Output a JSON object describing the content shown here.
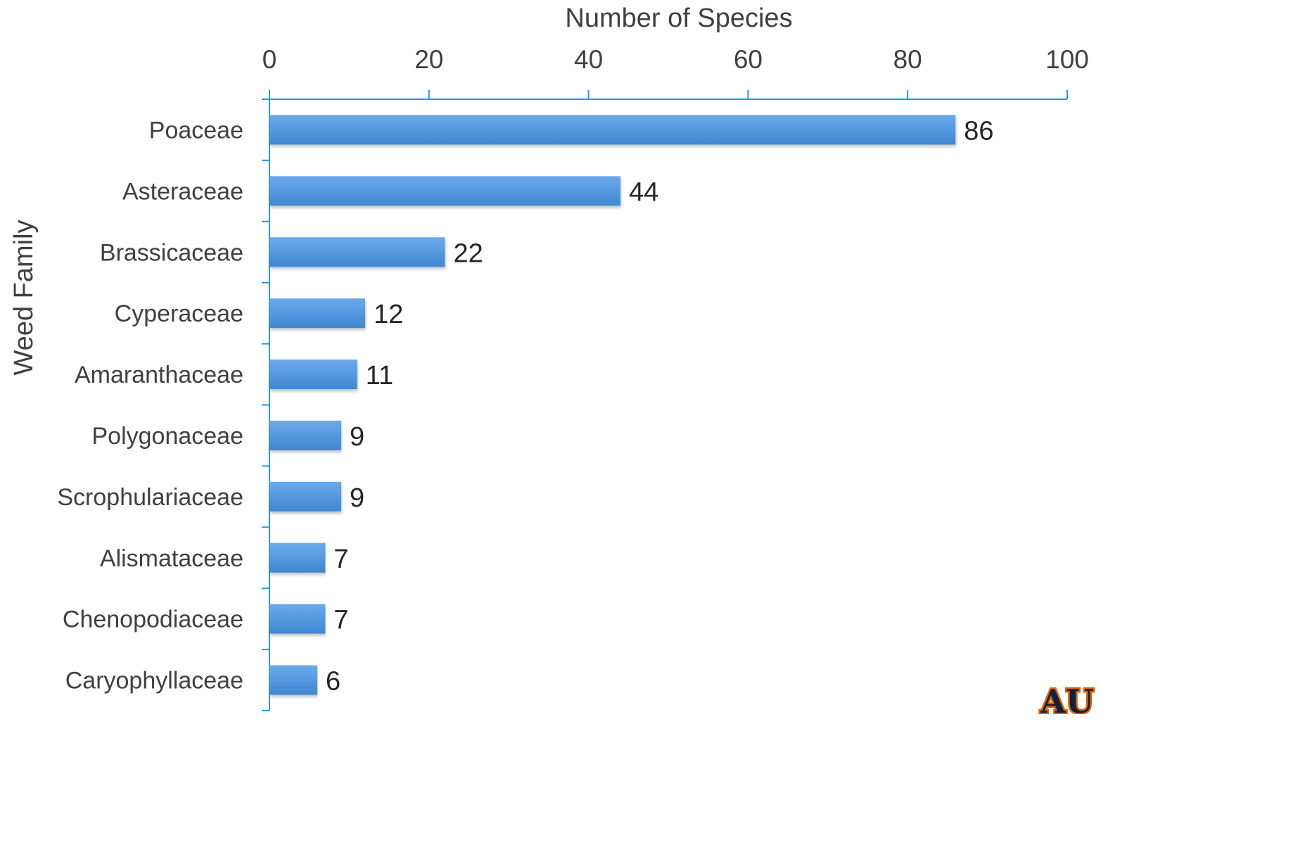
{
  "chart_data": {
    "type": "bar",
    "orientation": "horizontal",
    "categories": [
      "Poaceae",
      "Asteraceae",
      "Brassicaceae",
      "Cyperaceae",
      "Amaranthaceae",
      "Polygonaceae",
      "Scrophulariaceae",
      "Alismataceae",
      "Chenopodiaceae",
      "Caryophyllaceae"
    ],
    "values": [
      86,
      44,
      22,
      12,
      11,
      9,
      9,
      7,
      7,
      6
    ],
    "title": "",
    "xlabel": "Number of Species",
    "ylabel": "Weed Family",
    "xlim": [
      0,
      100
    ],
    "x_ticks": [
      0,
      20,
      40,
      60,
      80,
      100
    ],
    "x_axis_position": "top",
    "grid": false,
    "legend": "none",
    "data_labels": true
  },
  "colors": {
    "bar_top": "#6aaaea",
    "bar_bottom": "#3f87d2",
    "axis": "#1f9be3",
    "text": "#404040",
    "logo_orange": "#e86100",
    "logo_navy": "#0c2340"
  },
  "logo": {
    "icon": "university-logo-icon",
    "text": "AU"
  }
}
